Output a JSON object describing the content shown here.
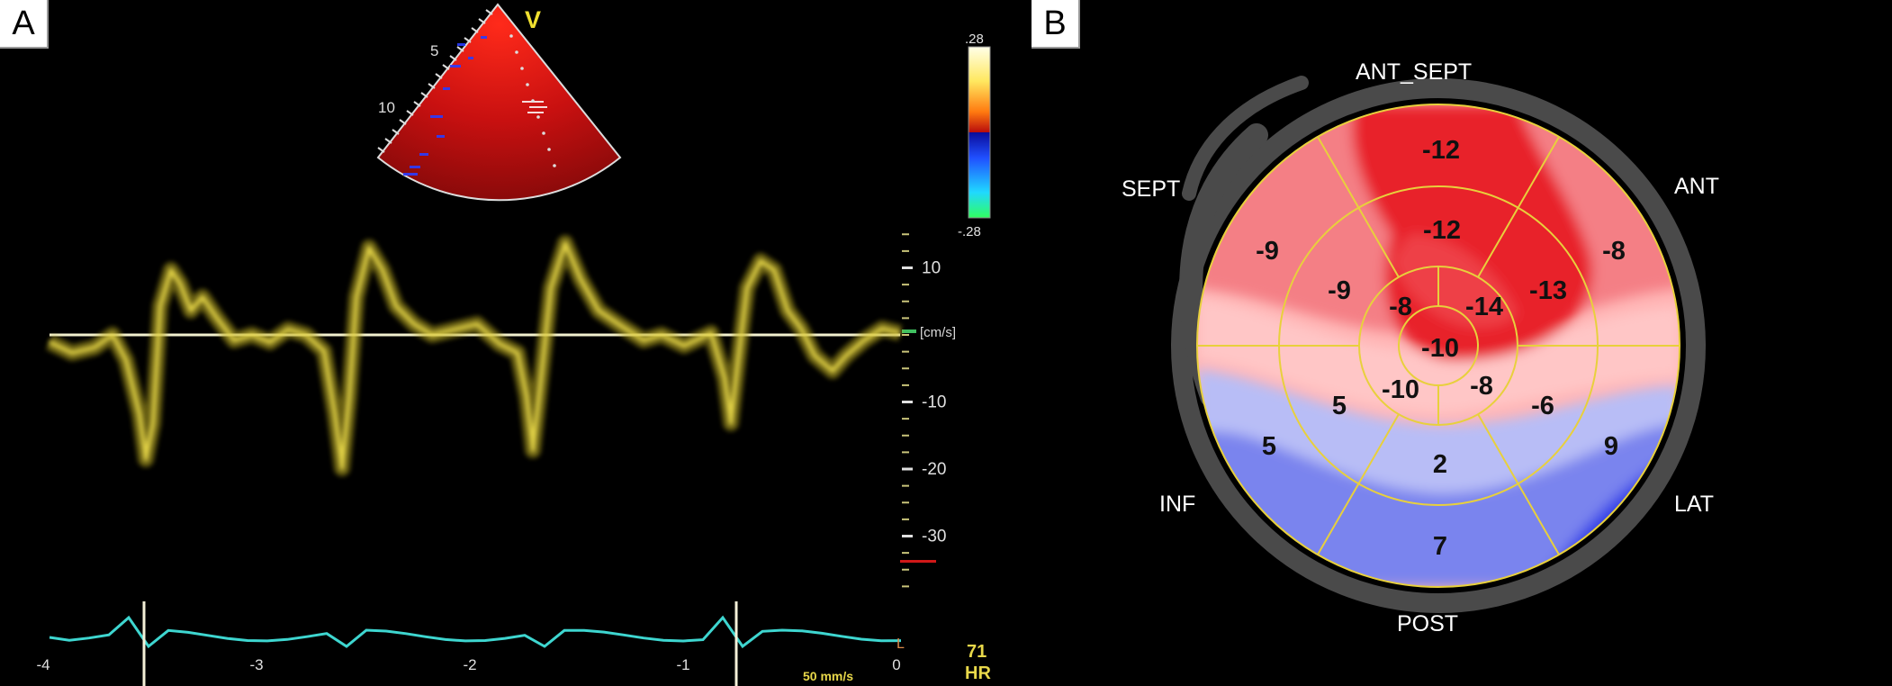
{
  "panel_a": {
    "label": "A",
    "view_label": "V",
    "depth_labels": [
      "5",
      "10"
    ],
    "color_scale": {
      "top": ".28",
      "bottom": "-.28"
    },
    "velocity_axis": {
      "unit": "[cm/s]",
      "ticks": [
        {
          "label": "10",
          "value": 10
        },
        {
          "label": "-10",
          "value": -10
        },
        {
          "label": "-20",
          "value": -20
        },
        {
          "label": "-30",
          "value": -30
        }
      ]
    },
    "time_axis": {
      "ticks": [
        {
          "label": "-4",
          "value": -4
        },
        {
          "label": "-3",
          "value": -3
        },
        {
          "label": "-2",
          "value": -2
        },
        {
          "label": "-1",
          "value": -1
        },
        {
          "label": "0",
          "value": 0
        }
      ]
    },
    "sweep_speed": "50 mm/s",
    "heart_rate": {
      "value": "71",
      "label": "HR"
    },
    "ecg_marker": "L",
    "colors": {
      "trace": "#e8d84a",
      "ecg": "#3ed6d0",
      "axis": "#c9c47a",
      "marker": "#d01818"
    }
  },
  "panel_b": {
    "label": "B",
    "wall_labels": {
      "ant_sept": "ANT_SEPT",
      "sept": "SEPT",
      "ant": "ANT",
      "inf": "INF",
      "lat": "LAT",
      "post": "POST"
    },
    "segments": {
      "basal": [
        {
          "wall": "ANT_SEPT",
          "value": "-12"
        },
        {
          "wall": "ANT",
          "value": "-8"
        },
        {
          "wall": "LAT",
          "value": "9"
        },
        {
          "wall": "POST",
          "value": "7"
        },
        {
          "wall": "INF",
          "value": "5"
        },
        {
          "wall": "SEPT",
          "value": "-9"
        }
      ],
      "mid": [
        {
          "wall": "ANT_SEPT",
          "value": "-12"
        },
        {
          "wall": "ANT",
          "value": "-13"
        },
        {
          "wall": "LAT",
          "value": "-6"
        },
        {
          "wall": "POST",
          "value": "2"
        },
        {
          "wall": "INF",
          "value": "5"
        },
        {
          "wall": "SEPT",
          "value": "-9"
        }
      ],
      "apical": [
        {
          "wall": "ANT",
          "value": "-14"
        },
        {
          "wall": "LAT",
          "value": "-8"
        },
        {
          "wall": "INF",
          "value": "-10"
        },
        {
          "wall": "SEPT",
          "value": "-8"
        }
      ],
      "apex": "-10"
    },
    "colors": {
      "negative": "#e8141e",
      "positive": "#2c38e6",
      "grid": "#e8d03c",
      "ring": "#4a4a4a"
    }
  }
}
